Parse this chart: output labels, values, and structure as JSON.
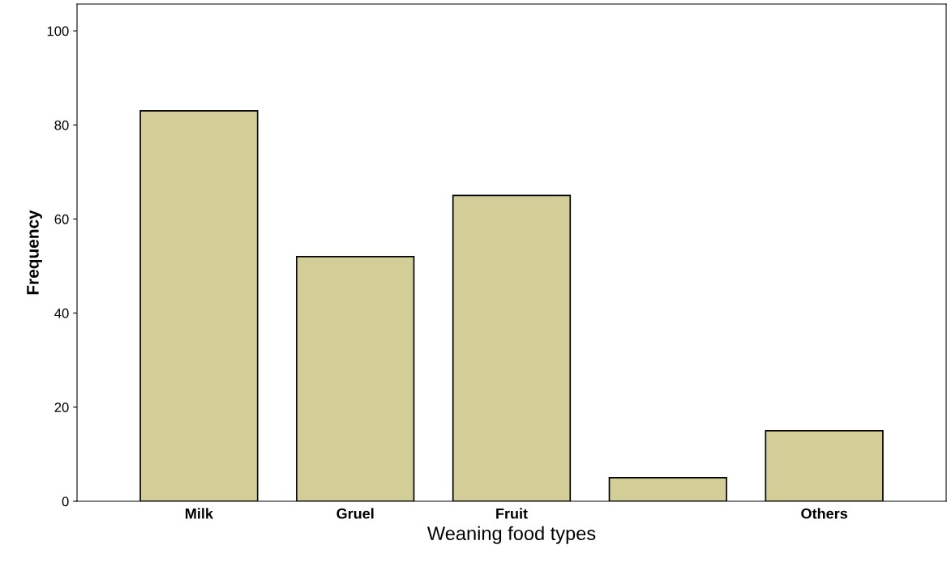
{
  "chart_data": {
    "type": "bar",
    "xlabel": "Weaning food types",
    "ylabel": "Frequency",
    "categories": [
      "Milk",
      "Gruel",
      "Fruit",
      null,
      "Others"
    ],
    "values": [
      83,
      52,
      65,
      5,
      15
    ],
    "color": "#d3ce98",
    "ylim": [
      0,
      105.7
    ],
    "yticks": [
      0,
      20,
      40,
      60,
      80,
      100
    ],
    "grid": false,
    "legend": false
  }
}
